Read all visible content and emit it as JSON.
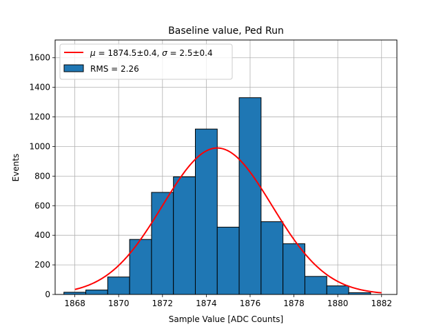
{
  "chart_data": {
    "type": "bar",
    "title": "Baseline value, Ped Run",
    "xlabel": "Sample Value [ADC Counts]",
    "ylabel": "Events",
    "xlim": [
      1867.1,
      1882.7
    ],
    "ylim": [
      0,
      1720
    ],
    "x_ticks": [
      1868,
      1870,
      1872,
      1874,
      1876,
      1878,
      1880,
      1882
    ],
    "y_ticks": [
      0,
      200,
      400,
      600,
      800,
      1000,
      1200,
      1400,
      1600
    ],
    "grid": true,
    "bin_edges": [
      1867.5,
      1868.5,
      1869.5,
      1870.5,
      1871.5,
      1872.5,
      1873.5,
      1874.5,
      1875.5,
      1876.5,
      1877.5,
      1878.5,
      1879.5,
      1880.5,
      1881.5
    ],
    "series": [
      {
        "name": "RMS = 2.26",
        "kind": "histogram",
        "color": "#1f77b4",
        "values": [
          15,
          30,
          118,
          372,
          690,
          795,
          1118,
          455,
          1330,
          492,
          343,
          122,
          58,
          12
        ]
      },
      {
        "name": "μ = 1874.5±0.4, σ = 2.5±0.4",
        "kind": "gaussian-fit",
        "color": "#ff0000",
        "mu": 1874.5,
        "sigma": 2.5,
        "amplitude": 990,
        "x_range": [
          1868,
          1882
        ]
      }
    ],
    "legend": {
      "position": "top-left",
      "entries": [
        {
          "label_prefix": "μ",
          "label_mid": " = 1874.5±0.4, ",
          "label_sigma": "σ",
          "label_suffix": " = 2.5±0.4"
        },
        {
          "label": "RMS = 2.26"
        }
      ]
    }
  }
}
